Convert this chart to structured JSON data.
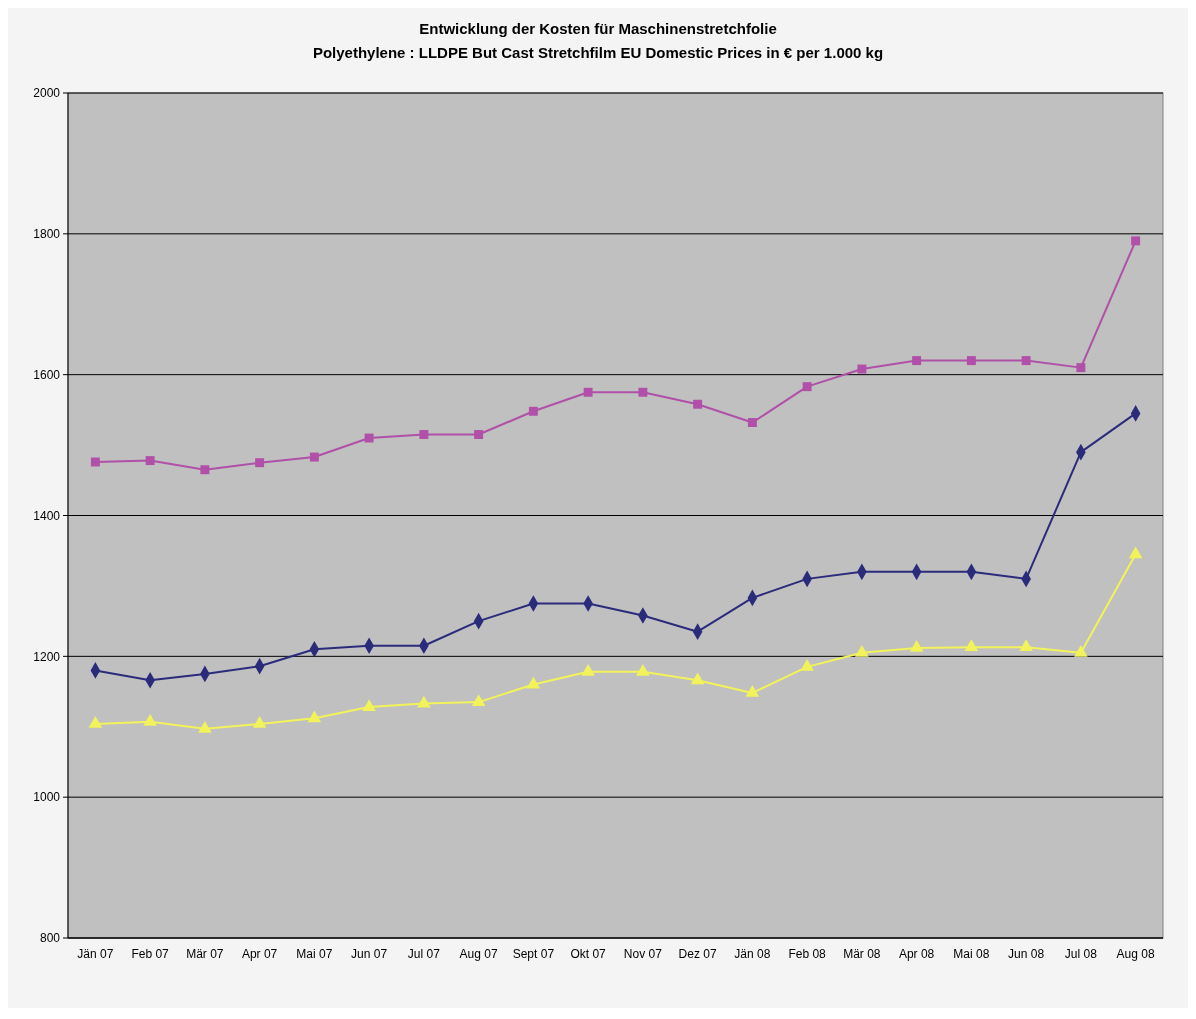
{
  "chart_data": {
    "type": "line",
    "title": "Entwicklung der Kosten für Maschinenstretchfolie",
    "subtitle": "Polyethylene : LLDPE But Cast Stretchfilm EU Domestic Prices in € per 1.000 kg",
    "categories": [
      "Jän 07",
      "Feb 07",
      "Mär 07",
      "Apr 07",
      "Mai 07",
      "Jun 07",
      "Jul 07",
      "Aug 07",
      "Sept 07",
      "Okt 07",
      "Nov 07",
      "Dez 07",
      "Jän 08",
      "Feb 08",
      "Mär 08",
      "Apr 08",
      "Mai 08",
      "Jun 08",
      "Jul 08",
      "Aug 08"
    ],
    "series": [
      {
        "color": "#2b2b7c",
        "marker": "diamond",
        "values": [
          1180,
          1166,
          1175,
          1186,
          1210,
          1215,
          1215,
          1250,
          1275,
          1275,
          1258,
          1235,
          1283,
          1310,
          1320,
          1320,
          1320,
          1310,
          1490,
          1545
        ]
      },
      {
        "color": "#b050a8",
        "marker": "square",
        "values": [
          1476,
          1478,
          1465,
          1475,
          1483,
          1510,
          1515,
          1515,
          1548,
          1575,
          1575,
          1558,
          1532,
          1583,
          1608,
          1620,
          1620,
          1620,
          1610,
          1790
        ]
      },
      {
        "color": "#f2f25a",
        "marker": "triangle",
        "values": [
          1104,
          1107,
          1097,
          1104,
          1112,
          1128,
          1133,
          1135,
          1160,
          1178,
          1178,
          1166,
          1148,
          1185,
          1205,
          1212,
          1213,
          1213,
          1205,
          1345
        ]
      }
    ],
    "ylim": [
      800,
      2000
    ],
    "yticks": [
      800,
      1000,
      1200,
      1400,
      1600,
      1800,
      2000
    ],
    "grid": "y"
  }
}
